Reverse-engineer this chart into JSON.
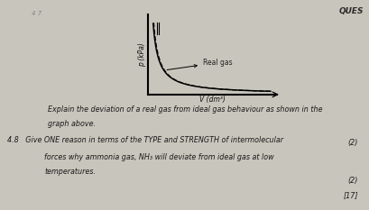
{
  "background_color": "#c8c5bc",
  "page_color": "#d6d2c8",
  "title_top_right": "QUES",
  "graph_xlabel": "V (dm³)",
  "graph_ylabel": "p (kPa)",
  "graph_label_real": "Real gas",
  "question_text_1": "Explain the deviation of a real gas from ideal gas behaviour as shown in the",
  "question_text_2": "graph above.",
  "question_48_intro": "4.8   Give ONE reason in terms of the TYPE and STRENGTH of intermolecular",
  "question_48_line2": "forces why ammonia gas, NH₃ will deviate from ideal gas at low",
  "question_48_line3": "temperatures.",
  "marks_1": "(2)",
  "marks_2": "(2)",
  "marks_total": "[17]"
}
